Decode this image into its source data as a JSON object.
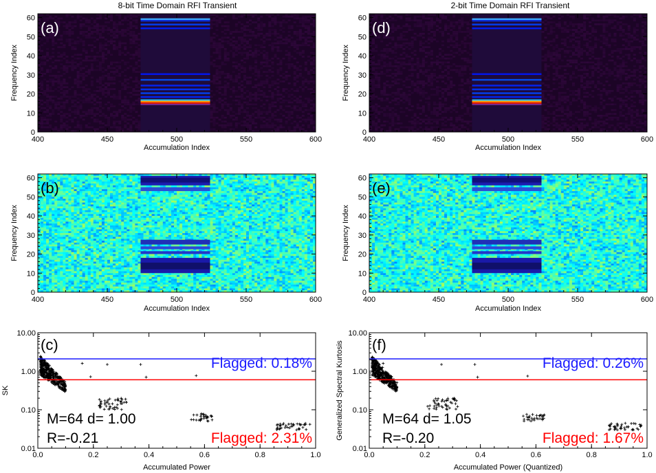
{
  "figure": {
    "columns": [
      {
        "title": "8-bit Time Domain RFI Transient",
        "panels": {
          "top": {
            "label": "(a)",
            "ylabel": "Frequency Index",
            "xlabel": "Accumulation Index"
          },
          "middle": {
            "label": "(b)",
            "ylabel": "Frequency Index",
            "xlabel": "Accumulation Index"
          },
          "bottom": {
            "label": "(c)",
            "ylabel": "SK",
            "xlabel": "Accumulated Power",
            "flag_upper": "Flagged: 0.18%",
            "flag_lower": "Flagged: 2.31%",
            "params": "M=64 d= 1.00",
            "corr": "R=-0.21"
          }
        }
      },
      {
        "title": "2-bit Time Domain RFI Transient",
        "panels": {
          "top": {
            "label": "(d)",
            "ylabel": "Frequency Index",
            "xlabel": "Accumulation Index"
          },
          "middle": {
            "label": "(e)",
            "ylabel": "Frequency Index",
            "xlabel": "Accumulation Index"
          },
          "bottom": {
            "label": "(f)",
            "ylabel": "Generalized Spectral Kurtosis",
            "xlabel": "Accumulated Power (Quantized)",
            "flag_upper": "Flagged: 0.26%",
            "flag_lower": "Flagged: 1.67%",
            "params": "M=64 d= 1.05",
            "corr": "R=-0.20"
          }
        }
      }
    ]
  },
  "chart_data": [
    {
      "type": "heatmap",
      "panel": "a",
      "title": "8-bit Time Domain RFI Transient",
      "xlabel": "Accumulation Index",
      "ylabel": "Frequency Index",
      "xlim": [
        400,
        600
      ],
      "ylim": [
        0,
        62
      ],
      "xticks": [
        400,
        450,
        500,
        550,
        600
      ],
      "yticks": [
        0,
        10,
        20,
        30,
        40,
        50,
        60
      ],
      "transient_x_range": [
        474,
        524
      ],
      "bright_channels": [
        15,
        16,
        58,
        59
      ]
    },
    {
      "type": "heatmap",
      "panel": "b",
      "xlabel": "Accumulation Index",
      "ylabel": "Frequency Index",
      "xlim": [
        400,
        600
      ],
      "ylim": [
        0,
        62
      ],
      "xticks": [
        400,
        450,
        500,
        550,
        600
      ],
      "yticks": [
        0,
        10,
        20,
        30,
        40,
        50,
        60
      ],
      "transient_x_range": [
        474,
        524
      ]
    },
    {
      "type": "scatter",
      "panel": "c",
      "xlabel": "Accumulated Power",
      "ylabel": "SK",
      "xlim": [
        0,
        1
      ],
      "ylim": [
        0.01,
        10
      ],
      "ylog": true,
      "xticks": [
        "0.0",
        "0.2",
        "0.4",
        "0.6",
        "0.8",
        "1.0"
      ],
      "yticks": [
        "0.01",
        "0.10",
        "1.00",
        "10.00"
      ],
      "thresholds": [
        {
          "value": 2.1,
          "color": "#1a1aff"
        },
        {
          "value": 0.6,
          "color": "#ff0000"
        }
      ],
      "clusters": [
        {
          "x": [
            0.01,
            0.1
          ],
          "y": [
            0.3,
            3.0
          ],
          "count": 400
        },
        {
          "x": [
            0.22,
            0.32
          ],
          "y": [
            0.1,
            0.2
          ],
          "count": 45
        },
        {
          "x": [
            0.55,
            0.63
          ],
          "y": [
            0.05,
            0.08
          ],
          "count": 30
        },
        {
          "x": [
            0.86,
            0.98
          ],
          "y": [
            0.03,
            0.045
          ],
          "count": 40
        }
      ],
      "outliers": [
        [
          0.16,
          1.6
        ],
        [
          0.19,
          0.72
        ],
        [
          0.25,
          1.5
        ],
        [
          0.37,
          1.5
        ],
        [
          0.39,
          0.7
        ],
        [
          0.57,
          0.77
        ]
      ]
    },
    {
      "type": "heatmap",
      "panel": "d",
      "title": "2-bit Time Domain RFI Transient",
      "xlabel": "Accumulation Index",
      "ylabel": "Frequency Index",
      "xlim": [
        400,
        600
      ],
      "ylim": [
        0,
        62
      ],
      "xticks": [
        400,
        450,
        500,
        550,
        600
      ],
      "yticks": [
        0,
        10,
        20,
        30,
        40,
        50,
        60
      ],
      "transient_x_range": [
        474,
        524
      ],
      "bright_channels": [
        15,
        16,
        58,
        59
      ]
    },
    {
      "type": "heatmap",
      "panel": "e",
      "xlabel": "Accumulation Index",
      "ylabel": "Frequency Index",
      "xlim": [
        400,
        600
      ],
      "ylim": [
        0,
        62
      ],
      "xticks": [
        400,
        450,
        500,
        550,
        600
      ],
      "yticks": [
        0,
        10,
        20,
        30,
        40,
        50,
        60
      ],
      "transient_x_range": [
        474,
        524
      ]
    },
    {
      "type": "scatter",
      "panel": "f",
      "xlabel": "Accumulated Power (Quantized)",
      "ylabel": "Generalized Spectral Kurtosis",
      "xlim": [
        0,
        1
      ],
      "ylim": [
        0.01,
        10
      ],
      "ylog": true,
      "xticks": [
        "0.0",
        "0.2",
        "0.4",
        "0.6",
        "0.8",
        "1.0"
      ],
      "yticks": [
        "0.01",
        "0.10",
        "1.00",
        "10.00"
      ],
      "thresholds": [
        {
          "value": 2.1,
          "color": "#1a1aff"
        },
        {
          "value": 0.6,
          "color": "#ff0000"
        }
      ],
      "clusters": [
        {
          "x": [
            0.01,
            0.1
          ],
          "y": [
            0.3,
            3.0
          ],
          "count": 400
        },
        {
          "x": [
            0.21,
            0.32
          ],
          "y": [
            0.1,
            0.2
          ],
          "count": 45
        },
        {
          "x": [
            0.55,
            0.63
          ],
          "y": [
            0.05,
            0.08
          ],
          "count": 30
        },
        {
          "x": [
            0.86,
            0.98
          ],
          "y": [
            0.03,
            0.045
          ],
          "count": 40
        }
      ],
      "outliers": [
        [
          0.05,
          1.6
        ],
        [
          0.08,
          0.72
        ],
        [
          0.26,
          1.5
        ],
        [
          0.38,
          1.5
        ],
        [
          0.39,
          0.7
        ],
        [
          0.57,
          0.75
        ]
      ]
    }
  ]
}
